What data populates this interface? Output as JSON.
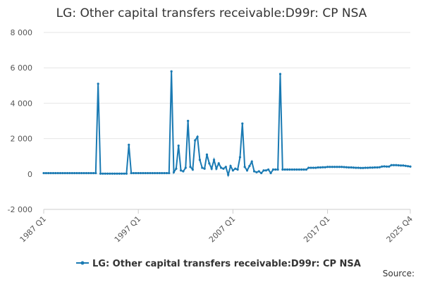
{
  "chart_data": {
    "type": "line",
    "title": "LG: Other capital transfers receivable:D99r: CP NSA",
    "source": "Source:",
    "categories": [
      "1987 Q1",
      null,
      null,
      null,
      null,
      null,
      null,
      null,
      null,
      null,
      null,
      null,
      null,
      null,
      null,
      null,
      null,
      null,
      null,
      null,
      null,
      null,
      null,
      null,
      null,
      null,
      null,
      null,
      null,
      null,
      null,
      null,
      null,
      null,
      null,
      null,
      null,
      null,
      null,
      null,
      "1997 Q1",
      null,
      null,
      null,
      null,
      null,
      null,
      null,
      null,
      null,
      null,
      null,
      null,
      null,
      null,
      null,
      null,
      null,
      null,
      null,
      null,
      null,
      null,
      null,
      null,
      null,
      null,
      null,
      null,
      null,
      null,
      null,
      null,
      null,
      null,
      null,
      null,
      null,
      null,
      null,
      "2007 Q1",
      null,
      null,
      null,
      null,
      null,
      null,
      null,
      null,
      null,
      null,
      null,
      null,
      null,
      null,
      null,
      null,
      null,
      null,
      null,
      null,
      null,
      null,
      null,
      null,
      null,
      null,
      null,
      null,
      null,
      null,
      null,
      null,
      null,
      null,
      null,
      null,
      null,
      null,
      null,
      "2017 Q1",
      null,
      null,
      null,
      null,
      null,
      null,
      null,
      null,
      null,
      null,
      null,
      null,
      null,
      null,
      null,
      null,
      null,
      null,
      null,
      null,
      null,
      null,
      null,
      null,
      null,
      null,
      null,
      null,
      null,
      null,
      null,
      null,
      null,
      null,
      "2025 Q4"
    ],
    "series": [
      {
        "name": "LG: Other capital transfers receivable:D99r: CP NSA",
        "color": "#1a7ab3",
        "values": [
          50,
          50,
          50,
          50,
          50,
          50,
          50,
          50,
          50,
          50,
          50,
          50,
          50,
          50,
          50,
          50,
          50,
          50,
          50,
          50,
          50,
          50,
          50,
          5100,
          20,
          20,
          20,
          20,
          20,
          20,
          20,
          20,
          20,
          20,
          20,
          20,
          1650,
          50,
          50,
          50,
          50,
          50,
          50,
          50,
          50,
          50,
          50,
          50,
          50,
          50,
          50,
          50,
          50,
          50,
          5800,
          100,
          300,
          1600,
          200,
          150,
          350,
          3000,
          400,
          250,
          1900,
          2100,
          800,
          350,
          300,
          1100,
          600,
          300,
          800,
          300,
          600,
          350,
          300,
          400,
          -50,
          450,
          200,
          300,
          250,
          950,
          2850,
          400,
          200,
          450,
          700,
          150,
          100,
          150,
          50,
          200,
          200,
          250,
          50,
          250,
          250,
          250,
          5650,
          250,
          250,
          250,
          250,
          250,
          250,
          250,
          250,
          250,
          250,
          250,
          350,
          350,
          350,
          350,
          370,
          370,
          380,
          380,
          400,
          400,
          400,
          400,
          400,
          400,
          400,
          390,
          380,
          370,
          370,
          360,
          350,
          350,
          340,
          340,
          350,
          350,
          360,
          360,
          370,
          370,
          380,
          420,
          430,
          420,
          420,
          500,
          500,
          500,
          490,
          480,
          480,
          460,
          440,
          420
        ]
      }
    ],
    "ylim": [
      -2000,
      8000
    ],
    "yticks": [
      {
        "value": -2000,
        "label": "-2 000"
      },
      0,
      {
        "value": 2000,
        "label": "2 000"
      },
      {
        "value": 4000,
        "label": "4 000"
      },
      {
        "value": 6000,
        "label": "6 000"
      },
      {
        "value": 8000,
        "label": "8 000"
      }
    ],
    "grid": true
  }
}
